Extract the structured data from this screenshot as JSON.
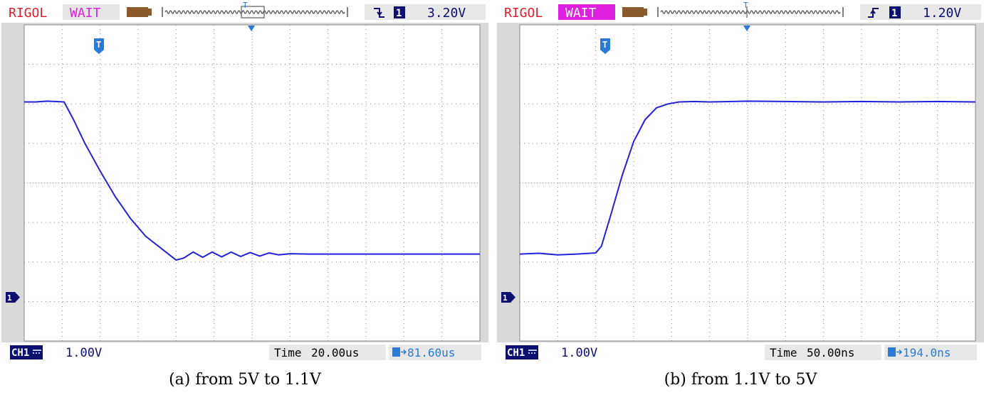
{
  "panels": [
    {
      "brand": "RIGOL",
      "status": "WAIT",
      "trigger_channel": "1",
      "trigger_slope": "falling",
      "trigger_level": "3.20V",
      "channel_label": "CH1",
      "volts_per_div": "1.00V",
      "time_label": "Time",
      "time_per_div": "20.00us",
      "trigger_offset": "81.60us",
      "trigger_marker": "T",
      "ground_marker": "1",
      "caption": "(a) from 5V to 1.1V",
      "chart_data": {
        "type": "line",
        "xlim": [
          0,
          12
        ],
        "ylim": [
          -4,
          4
        ],
        "grid": true,
        "units": "divisions",
        "series": [
          {
            "color": "#2222dd",
            "x": [
              0,
              0.3,
              0.6,
              1.05,
              1.3,
              1.6,
              2.0,
              2.4,
              2.8,
              3.2,
              3.6,
              4.0,
              4.2,
              4.45,
              4.7,
              4.95,
              5.2,
              5.45,
              5.7,
              5.95,
              6.2,
              6.45,
              6.7,
              7.0,
              7.5,
              8.0,
              9.0,
              10.0,
              11.0,
              12.0
            ],
            "y": [
              2.05,
              2.05,
              2.07,
              2.05,
              1.6,
              1.0,
              0.3,
              -0.35,
              -0.9,
              -1.35,
              -1.65,
              -1.95,
              -1.9,
              -1.75,
              -1.88,
              -1.75,
              -1.87,
              -1.75,
              -1.86,
              -1.76,
              -1.85,
              -1.77,
              -1.82,
              -1.79,
              -1.8,
              -1.8,
              -1.8,
              -1.8,
              -1.8,
              -1.8
            ]
          }
        ]
      }
    },
    {
      "brand": "RIGOL",
      "status": "WAIT",
      "trigger_channel": "1",
      "trigger_slope": "rising",
      "trigger_level": "1.20V",
      "channel_label": "CH1",
      "volts_per_div": "1.00V",
      "time_label": "Time",
      "time_per_div": "50.00ns",
      "trigger_offset": "194.0ns",
      "trigger_marker": "T",
      "ground_marker": "1",
      "caption": "(b) from 1.1V to 5V",
      "chart_data": {
        "type": "line",
        "xlim": [
          0,
          12
        ],
        "ylim": [
          -4,
          4
        ],
        "grid": true,
        "units": "divisions",
        "series": [
          {
            "color": "#2222dd",
            "x": [
              0,
              0.5,
              1.0,
              1.5,
              2.0,
              2.15,
              2.4,
              2.7,
              3.0,
              3.3,
              3.6,
              3.9,
              4.2,
              4.6,
              5.0,
              6.0,
              7.0,
              8.0,
              9.0,
              10.0,
              11.0,
              12.0
            ],
            "y": [
              -1.8,
              -1.78,
              -1.82,
              -1.8,
              -1.77,
              -1.6,
              -0.8,
              0.2,
              1.05,
              1.6,
              1.9,
              2.0,
              2.05,
              2.06,
              2.05,
              2.07,
              2.06,
              2.05,
              2.06,
              2.05,
              2.06,
              2.05
            ]
          }
        ]
      }
    }
  ]
}
